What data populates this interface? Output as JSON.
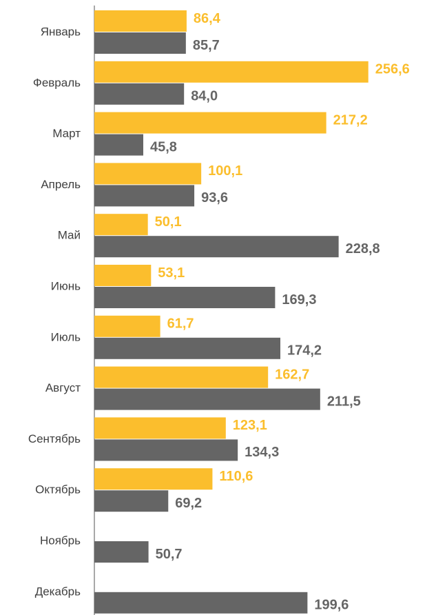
{
  "chart_data": {
    "type": "barh",
    "categories": [
      "Январь",
      "Февраль",
      "Март",
      "Апрель",
      "Май",
      "Июнь",
      "Июль",
      "Август",
      "Сентябрь",
      "Октябрь",
      "Ноябрь",
      "Декабрь"
    ],
    "series": [
      {
        "color": "#fbbe2d",
        "values": [
          86.4,
          256.6,
          217.2,
          100.1,
          50.1,
          53.1,
          61.7,
          162.7,
          123.1,
          110.6,
          null,
          null
        ],
        "value_labels": [
          "86,4",
          "256,6",
          "217,2",
          "100,1",
          "50,1",
          "53,1",
          "61,7",
          "162,7",
          "123,1",
          "110,6",
          null,
          null
        ]
      },
      {
        "color": "#656565",
        "values": [
          85.7,
          84.0,
          45.8,
          93.6,
          228.8,
          169.3,
          174.2,
          211.5,
          134.3,
          69.2,
          50.7,
          199.6
        ],
        "value_labels": [
          "85,7",
          "84,0",
          "45,8",
          "93,6",
          "228,8",
          "169,3",
          "174,2",
          "211,5",
          "134,3",
          "69,2",
          "50,7",
          "199,6"
        ]
      }
    ],
    "xlim": [
      0,
      320
    ]
  }
}
